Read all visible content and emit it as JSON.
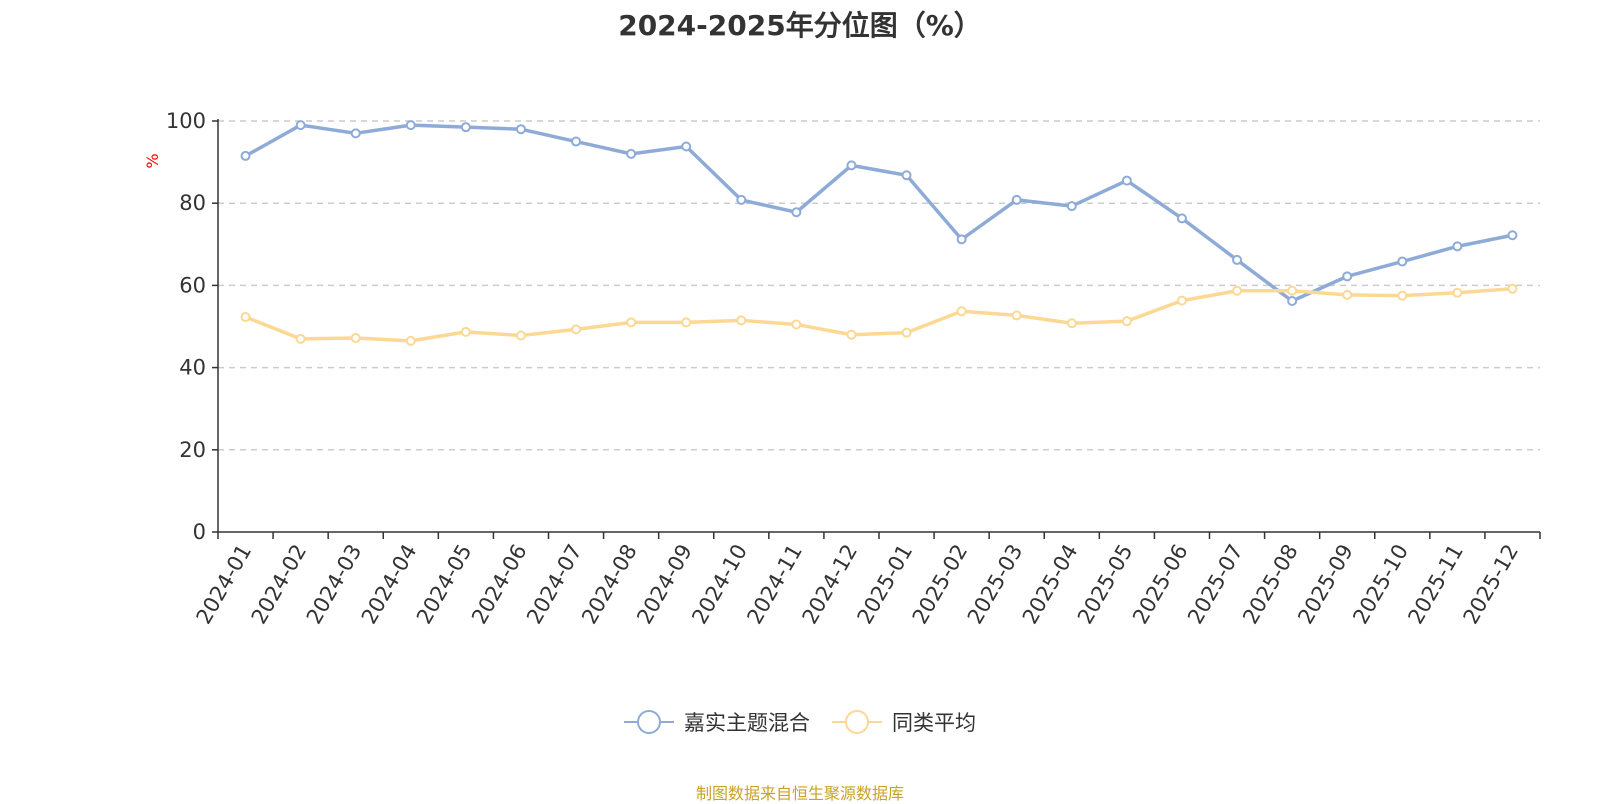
{
  "title": "2024-2025年分位图（%）",
  "source_note": "制图数据来自恒生聚源数据库",
  "colors": {
    "series1": "#8eabd8",
    "series2": "#fcd894",
    "unit": "#ff0000",
    "source": "#c9a227"
  },
  "chart_data": {
    "type": "line",
    "title": "2024-2025年分位图（%）",
    "ylabel": "%",
    "xlabel": "",
    "ylim": [
      0,
      100
    ],
    "yticks": [
      0,
      20,
      40,
      60,
      80,
      100
    ],
    "grid": true,
    "legend_position": "bottom",
    "categories": [
      "2024-01",
      "2024-02",
      "2024-03",
      "2024-04",
      "2024-05",
      "2024-06",
      "2024-07",
      "2024-08",
      "2024-09",
      "2024-10",
      "2024-11",
      "2024-12",
      "2025-01",
      "2025-02",
      "2025-03",
      "2025-04",
      "2025-05",
      "2025-06",
      "2025-07",
      "2025-08",
      "2025-09",
      "2025-10",
      "2025-11",
      "2025-12"
    ],
    "series": [
      {
        "name": "嘉实主题混合",
        "values": [
          91.5,
          99.0,
          97.0,
          99.0,
          98.5,
          98.0,
          95.0,
          92.0,
          93.8,
          80.8,
          77.8,
          89.2,
          86.8,
          71.2,
          80.8,
          79.3,
          85.5,
          76.3,
          66.2,
          56.2,
          62.2,
          65.8,
          69.5,
          72.2
        ]
      },
      {
        "name": "同类平均",
        "values": [
          52.3,
          47.0,
          47.2,
          46.5,
          48.7,
          47.8,
          49.3,
          51.0,
          51.0,
          51.5,
          50.5,
          48.0,
          48.5,
          53.7,
          52.7,
          50.8,
          51.3,
          56.3,
          58.7,
          58.7,
          57.7,
          57.5,
          58.2,
          59.2
        ]
      }
    ]
  }
}
